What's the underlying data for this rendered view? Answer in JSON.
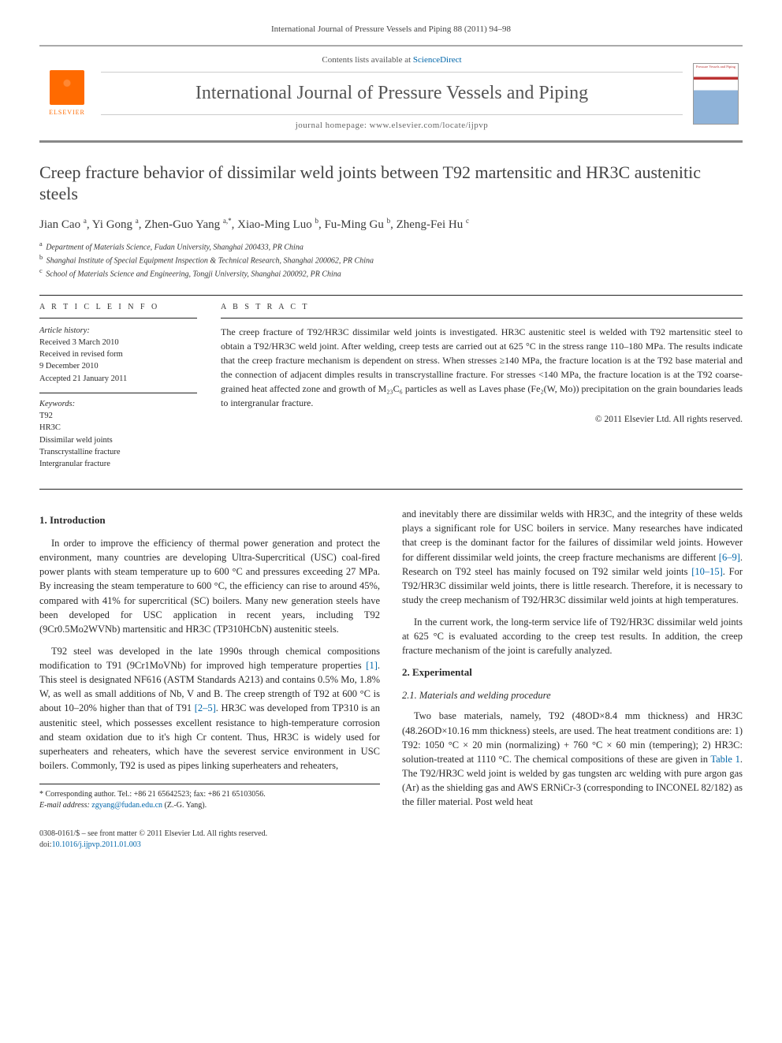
{
  "journal_ref": "International Journal of Pressure Vessels and Piping 88 (2011) 94–98",
  "header": {
    "contents_prefix": "Contents lists available at ",
    "contents_link": "ScienceDirect",
    "journal_name": "International Journal of Pressure Vessels and Piping",
    "homepage_prefix": "journal homepage: ",
    "homepage_url": "www.elsevier.com/locate/ijpvp",
    "publisher": "ELSEVIER"
  },
  "title": "Creep fracture behavior of dissimilar weld joints between T92 martensitic and HR3C austenitic steels",
  "authors_html": "Jian Cao <sup>a</sup>, Yi Gong <sup>a</sup>, Zhen-Guo Yang <sup>a,*</sup>, Xiao-Ming Luo <sup>b</sup>, Fu-Ming Gu <sup>b</sup>, Zheng-Fei Hu <sup>c</sup>",
  "affiliations": [
    {
      "sup": "a",
      "text": "Department of Materials Science, Fudan University, Shanghai 200433, PR China"
    },
    {
      "sup": "b",
      "text": "Shanghai Institute of Special Equipment Inspection & Technical Research, Shanghai 200062, PR China"
    },
    {
      "sup": "c",
      "text": "School of Materials Science and Engineering, Tongji University, Shanghai 200092, PR China"
    }
  ],
  "article_info": {
    "label": "A R T I C L E   I N F O",
    "history_head": "Article history:",
    "history": [
      "Received 3 March 2010",
      "Received in revised form",
      "9 December 2010",
      "Accepted 21 January 2011"
    ],
    "keywords_head": "Keywords:",
    "keywords": [
      "T92",
      "HR3C",
      "Dissimilar weld joints",
      "Transcrystalline fracture",
      "Intergranular fracture"
    ]
  },
  "abstract": {
    "label": "A B S T R A C T",
    "text": "The creep fracture of T92/HR3C dissimilar weld joints is investigated. HR3C austenitic steel is welded with T92 martensitic steel to obtain a T92/HR3C weld joint. After welding, creep tests are carried out at 625 °C in the stress range 110–180 MPa. The results indicate that the creep fracture mechanism is dependent on stress. When stresses ≥140 MPa, the fracture location is at the T92 base material and the connection of adjacent dimples results in transcrystalline fracture. For stresses <140 MPa, the fracture location is at the T92 coarse-grained heat affected zone and growth of M₂₃C₆ particles as well as Laves phase (Fe₂(W, Mo)) precipitation on the grain boundaries leads to intergranular fracture.",
    "copyright": "© 2011 Elsevier Ltd. All rights reserved."
  },
  "body": {
    "intro_head": "1.  Introduction",
    "intro_p1": "In order to improve the efficiency of thermal power generation and protect the environment, many countries are developing Ultra-Supercritical (USC) coal-fired power plants with steam temperature up to 600 °C and pressures exceeding 27 MPa. By increasing the steam temperature to 600 °C, the efficiency can rise to around 45%, compared with 41% for supercritical (SC) boilers. Many new generation steels have been developed for USC application in recent years, including T92 (9Cr0.5Mo2WVNb) martensitic and HR3C (TP310HCbN) austenitic steels.",
    "intro_p2_a": "T92 steel was developed in the late 1990s through chemical compositions modification to T91 (9Cr1MoVNb) for improved high temperature properties ",
    "intro_p2_ref1": "[1]",
    "intro_p2_b": ". This steel is designated NF616 (ASTM Standards A213) and contains 0.5% Mo, 1.8% W, as well as small additions of Nb, V and B. The creep strength of T92 at 600 °C is about 10–20% higher than that of T91 ",
    "intro_p2_ref2": "[2–5]",
    "intro_p2_c": ". HR3C was developed from TP310 is an austenitic steel, which possesses excellent resistance to high-temperature corrosion and steam oxidation due to it's high Cr content. Thus, HR3C is widely used for superheaters and reheaters, which have the severest service environment in USC boilers. Commonly, T92 is used as pipes linking superheaters and reheaters,",
    "intro_p3_a": "and inevitably there are dissimilar welds with HR3C, and the integrity of these welds plays a significant role for USC boilers in service. Many researches have indicated that creep is the dominant factor for the failures of dissimilar weld joints. However for different dissimilar weld joints, the creep fracture mechanisms are different ",
    "intro_p3_ref1": "[6–9]",
    "intro_p3_b": ". Research on T92 steel has mainly focused on T92 similar weld joints ",
    "intro_p3_ref2": "[10–15]",
    "intro_p3_c": ". For T92/HR3C dissimilar weld joints, there is little research. Therefore, it is necessary to study the creep mechanism of T92/HR3C dissimilar weld joints at high temperatures.",
    "intro_p4": "In the current work, the long-term service life of T92/HR3C dissimilar weld joints at 625 °C is evaluated according to the creep test results. In addition, the creep fracture mechanism of the joint is carefully analyzed.",
    "exp_head": "2.  Experimental",
    "exp_sub": "2.1.  Materials and welding procedure",
    "exp_p1_a": "Two base materials, namely, T92 (48OD×8.4 mm thickness) and HR3C (48.26OD×10.16 mm thickness) steels, are used. The heat treatment conditions are: 1) T92: 1050 °C × 20 min (normalizing) + 760 °C × 60 min (tempering); 2) HR3C: solution-treated at 1110 °C. The chemical compositions of these are given in ",
    "exp_p1_ref": "Table 1",
    "exp_p1_b": ". The T92/HR3C weld joint is welded by gas tungsten arc welding with pure argon gas (Ar) as the shielding gas and AWS ERNiCr-3 (corresponding to INCONEL 82/182) as the filler material. Post weld heat"
  },
  "footnote": {
    "corr": "* Corresponding author. Tel.: +86 21 65642523; fax: +86 21 65103056.",
    "email_label": "E-mail address: ",
    "email": "zgyang@fudan.edu.cn",
    "email_suffix": " (Z.-G. Yang)."
  },
  "footer": {
    "left1": "0308-0161/$ – see front matter © 2011 Elsevier Ltd. All rights reserved.",
    "doi_prefix": "doi:",
    "doi": "10.1016/j.ijpvp.2011.01.003"
  },
  "colors": {
    "accent_orange": "#ff6a00",
    "link_blue": "#0066aa",
    "text": "#2a2a2a",
    "rule": "#222222"
  }
}
